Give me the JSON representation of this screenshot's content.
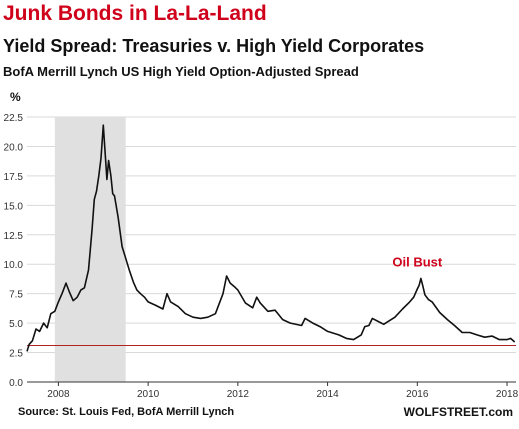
{
  "title": "Junk Bonds in La-La-Land",
  "subtitle": "Yield Spread: Treasuries v. High Yield Corporates",
  "subtitle2": "BofA Merrill Lynch US High Yield Option-Adjusted Spread",
  "source": "Source: St. Louis Fed, BofA Merrill Lynch",
  "brand": "WOLFSTREET.com",
  "colors": {
    "title": "#d0021b",
    "line": "#111111",
    "reference_line": "#b22222",
    "shade": "#e0e0e0",
    "grid": "#d9d9d9",
    "annotation": "#d0021b"
  },
  "chart_data": {
    "type": "line",
    "ylabel": "%",
    "xlabel": "",
    "xlim": [
      2007.3,
      2018.2
    ],
    "ylim": [
      0,
      22.5
    ],
    "yticks": [
      "0.0",
      "2.5",
      "5.0",
      "7.5",
      "10.0",
      "12.5",
      "15.0",
      "17.5",
      "20.0",
      "22.5"
    ],
    "xticks": [
      "2008",
      "2010",
      "2012",
      "2014",
      "2016",
      "2018"
    ],
    "grid": "horizontal",
    "shaded_region": [
      2007.92,
      2009.5
    ],
    "reference_line": 3.1,
    "annotation": {
      "text": "Oil Bust",
      "x": 2016.0,
      "y": 8.8
    },
    "series": [
      {
        "x": [
          2007.3,
          2007.35,
          2007.42,
          2007.5,
          2007.58,
          2007.67,
          2007.75,
          2007.83,
          2007.92,
          2008.0,
          2008.08,
          2008.17,
          2008.25,
          2008.33,
          2008.42,
          2008.5,
          2008.58,
          2008.67,
          2008.75,
          2008.8,
          2008.85,
          2008.9,
          2008.95,
          2009.0,
          2009.04,
          2009.08,
          2009.12,
          2009.17,
          2009.21,
          2009.25,
          2009.33,
          2009.42,
          2009.5,
          2009.58,
          2009.67,
          2009.75,
          2009.83,
          2009.92,
          2010.0,
          2010.17,
          2010.33,
          2010.42,
          2010.5,
          2010.67,
          2010.83,
          2011.0,
          2011.17,
          2011.33,
          2011.5,
          2011.67,
          2011.75,
          2011.83,
          2011.92,
          2012.0,
          2012.17,
          2012.33,
          2012.42,
          2012.5,
          2012.67,
          2012.83,
          2013.0,
          2013.17,
          2013.42,
          2013.5,
          2013.67,
          2013.83,
          2014.0,
          2014.25,
          2014.42,
          2014.58,
          2014.75,
          2014.83,
          2014.92,
          2015.0,
          2015.25,
          2015.5,
          2015.67,
          2015.83,
          2015.92,
          2016.0,
          2016.04,
          2016.08,
          2016.12,
          2016.17,
          2016.25,
          2016.33,
          2016.5,
          2016.67,
          2016.83,
          2017.0,
          2017.17,
          2017.33,
          2017.5,
          2017.67,
          2017.83,
          2018.0,
          2018.08,
          2018.17
        ],
        "values": [
          2.6,
          3.2,
          3.5,
          4.5,
          4.3,
          5.0,
          4.6,
          5.8,
          6.0,
          6.8,
          7.5,
          8.4,
          7.6,
          6.9,
          7.2,
          7.8,
          8.0,
          9.5,
          13.0,
          15.5,
          16.2,
          17.5,
          19.0,
          21.8,
          19.5,
          17.2,
          18.8,
          17.5,
          16.0,
          15.8,
          14.0,
          11.5,
          10.5,
          9.5,
          8.5,
          7.8,
          7.5,
          7.2,
          6.8,
          6.5,
          6.2,
          7.5,
          6.8,
          6.4,
          5.8,
          5.5,
          5.4,
          5.5,
          5.8,
          7.5,
          9.0,
          8.4,
          8.1,
          7.8,
          6.7,
          6.3,
          7.2,
          6.7,
          6.0,
          6.1,
          5.3,
          5.0,
          4.8,
          5.4,
          5.0,
          4.7,
          4.3,
          4.0,
          3.7,
          3.6,
          4.0,
          4.7,
          4.8,
          5.4,
          4.9,
          5.5,
          6.2,
          6.8,
          7.2,
          7.9,
          8.2,
          8.8,
          8.2,
          7.4,
          7.0,
          6.8,
          5.9,
          5.3,
          4.8,
          4.2,
          4.2,
          4.0,
          3.8,
          3.9,
          3.6,
          3.6,
          3.7,
          3.4
        ]
      }
    ]
  }
}
